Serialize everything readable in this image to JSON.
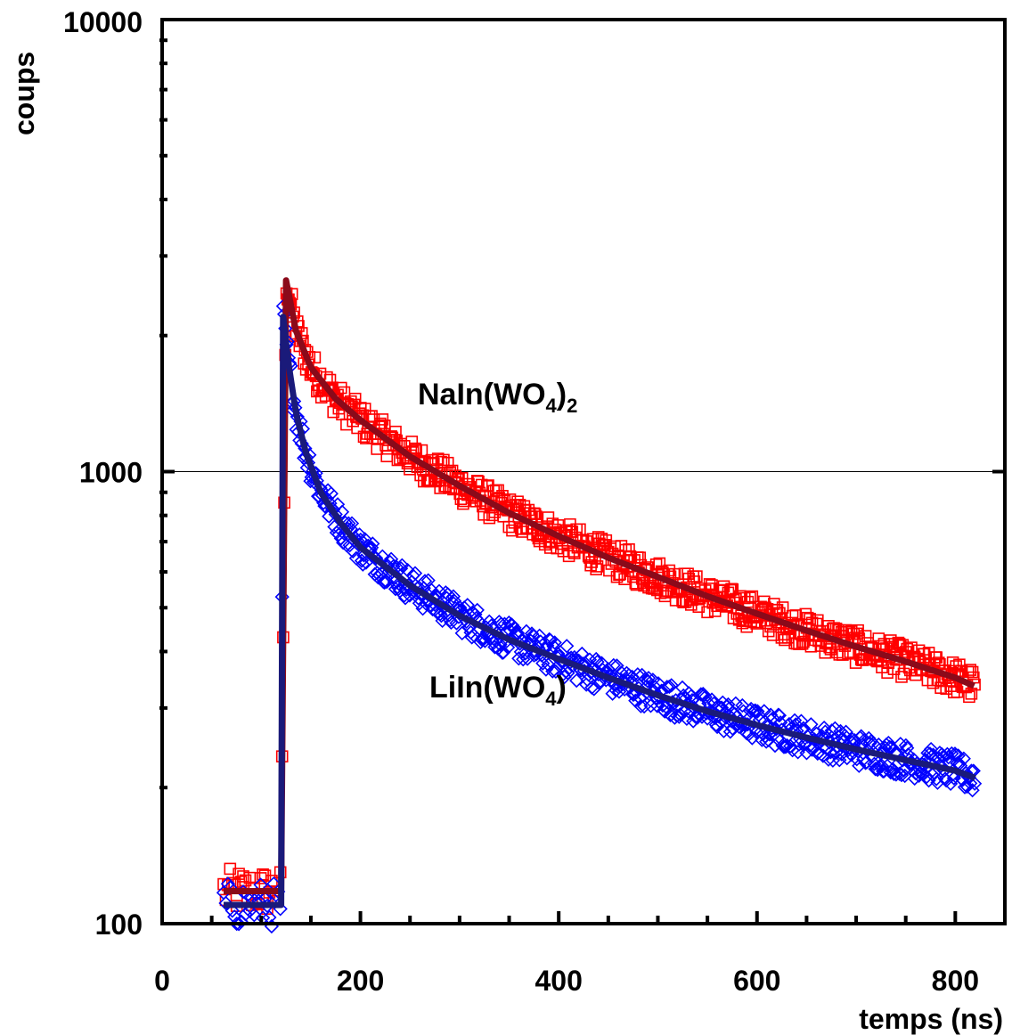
{
  "chart_data": {
    "type": "scatter",
    "xlabel": "temps (ns)",
    "ylabel": "coups",
    "xlim": [
      0,
      850
    ],
    "ylim": [
      100,
      10000
    ],
    "yscale": "log",
    "xticks": [
      0,
      200,
      400,
      600,
      800
    ],
    "xtick_labels": [
      "0",
      "200",
      "400",
      "600",
      "800"
    ],
    "yticks": [
      100,
      1000,
      10000
    ],
    "ytick_labels": [
      "100",
      "1000",
      "10000"
    ],
    "grid": "horizontal line at 1000",
    "series": [
      {
        "name": "NaIn(WO4)2",
        "label": {
          "base": "NaIn(WO",
          "sub1": "4",
          "mid": ")",
          "sub2": "2"
        },
        "marker": "square",
        "color": "#ff0000",
        "fit_color": "#8b0a1a",
        "baseline": 118,
        "fit_x": [
          120,
          125,
          135,
          150,
          175,
          200,
          250,
          300,
          350,
          400,
          450,
          500,
          550,
          600,
          650,
          700,
          750,
          800,
          820
        ],
        "fit_y": [
          118,
          2650,
          2050,
          1700,
          1450,
          1300,
          1080,
          930,
          810,
          720,
          645,
          585,
          530,
          485,
          445,
          410,
          380,
          350,
          335
        ]
      },
      {
        "name": "LiIn(WO4)",
        "label": {
          "base": "LiIn(WO",
          "sub1": "4",
          "mid": ")",
          "sub2": ""
        },
        "marker": "diamond",
        "color": "#0000ff",
        "fit_color": "#1a1a7a",
        "baseline": 110,
        "fit_x": [
          120,
          122,
          128,
          135,
          145,
          160,
          180,
          200,
          250,
          300,
          350,
          400,
          450,
          500,
          550,
          600,
          650,
          700,
          750,
          800,
          820
        ],
        "fit_y": [
          110,
          2200,
          1700,
          1350,
          1100,
          900,
          770,
          680,
          560,
          480,
          425,
          385,
          350,
          320,
          295,
          275,
          258,
          243,
          230,
          218,
          210
        ]
      }
    ]
  }
}
